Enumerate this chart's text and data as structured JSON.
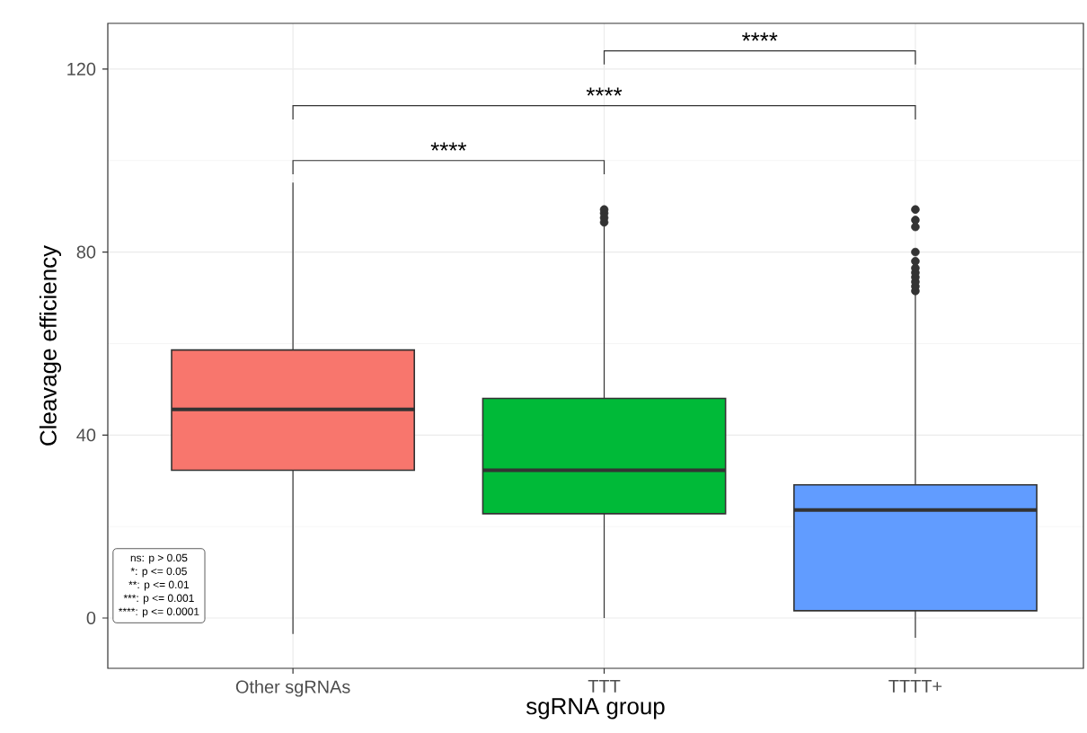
{
  "chart_data": {
    "type": "box",
    "xlabel": "sgRNA group",
    "ylabel": "Cleavage efficiency",
    "categories": [
      "Other sgRNAs",
      "TTT",
      "TTTT+"
    ],
    "colors": [
      "#f8766d",
      "#00ba38",
      "#619cff"
    ],
    "boxes": [
      {
        "low": -3.5,
        "q1": 32.3,
        "median": 45.6,
        "q3": 58.6,
        "high": 95.2
      },
      {
        "low": 0,
        "q1": 22.8,
        "median": 32.3,
        "q3": 48,
        "high": 86,
        "outliers": [
          86.5,
          87.5,
          88.5,
          89.3
        ]
      },
      {
        "low": -4.3,
        "q1": 1.6,
        "median": 23.6,
        "q3": 29.1,
        "high": 71,
        "outliers": [
          71.5,
          72.5,
          73.5,
          74.5,
          75.5,
          76.5,
          78,
          80,
          85.5,
          87,
          89.3
        ]
      }
    ],
    "ylim": [
      -11,
      130
    ],
    "yticks": [
      0,
      40,
      80,
      120
    ],
    "grid": true,
    "marker": "circle",
    "annotations": [
      "****",
      "****",
      "****",
      "ns: p > 0.05",
      "*: p <= 0.05",
      "**: p <= 0.01",
      "***: p <= 0.001",
      "****: p <= 0.0001"
    ]
  }
}
